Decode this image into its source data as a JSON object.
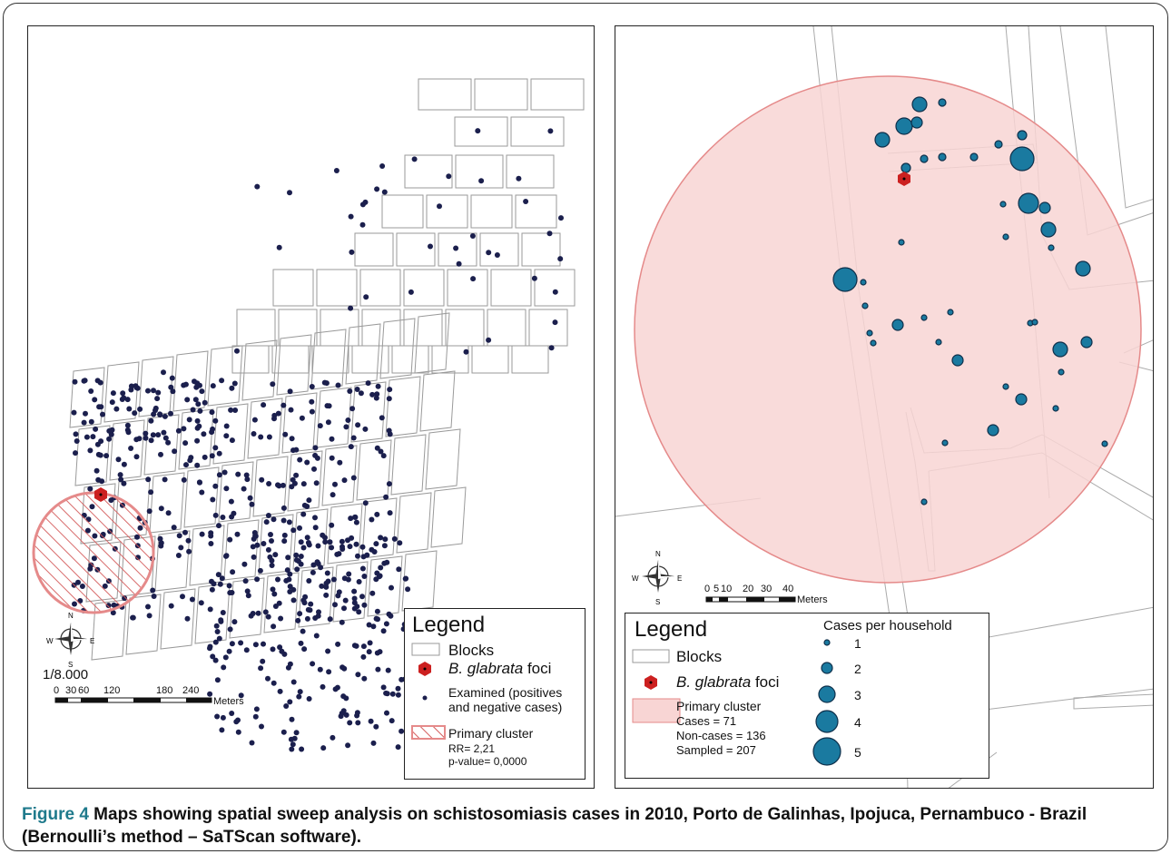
{
  "left_map": {
    "ratio": "1/8.000",
    "scale_ticks": [
      "0",
      "30",
      "60",
      "120",
      "180",
      "240"
    ],
    "scale_unit": "Meters",
    "legend": {
      "title": "Legend",
      "blocks": "Blocks",
      "foci_italic": "B. glabrata",
      "foci_rest": " foci",
      "examined_1": "Examined (positives",
      "examined_2": "and negative cases)",
      "cluster": "Primary cluster",
      "rr": "RR= 2,21",
      "pvalue": "p-value= 0,0000"
    }
  },
  "right_map": {
    "scale_ticks": [
      "0",
      "5",
      "10",
      "20",
      "30",
      "40"
    ],
    "scale_unit": "Meters",
    "legend": {
      "title": "Legend",
      "blocks": "Blocks",
      "foci_italic": "B. glabrata",
      "foci_rest": " foci",
      "cluster": "Primary cluster",
      "cases": "Cases = 71",
      "noncases": "Non-cases = 136",
      "sampled": "Sampled = 207",
      "size_title": "Cases per household",
      "size_labels": [
        "1",
        "2",
        "3",
        "4",
        "5"
      ]
    }
  },
  "compass": {
    "n": "N",
    "s": "S",
    "e": "E",
    "w": "W"
  },
  "caption": {
    "label": "Figure 4",
    "text": " Maps showing spatial sweep analysis on schistosomiasis cases in 2010, Porto de Galinhas, Ipojuca, Pernambuco - Brazil (Bernoulli’s method – SaTScan software)."
  },
  "colors": {
    "dot": "#1b1f4d",
    "case": "#1a7aa0",
    "cluster_fill": "#f8d5d4",
    "cluster_stroke": "#e58a8a",
    "foci": "#cc2020",
    "blocks": "#9a9a9a"
  }
}
